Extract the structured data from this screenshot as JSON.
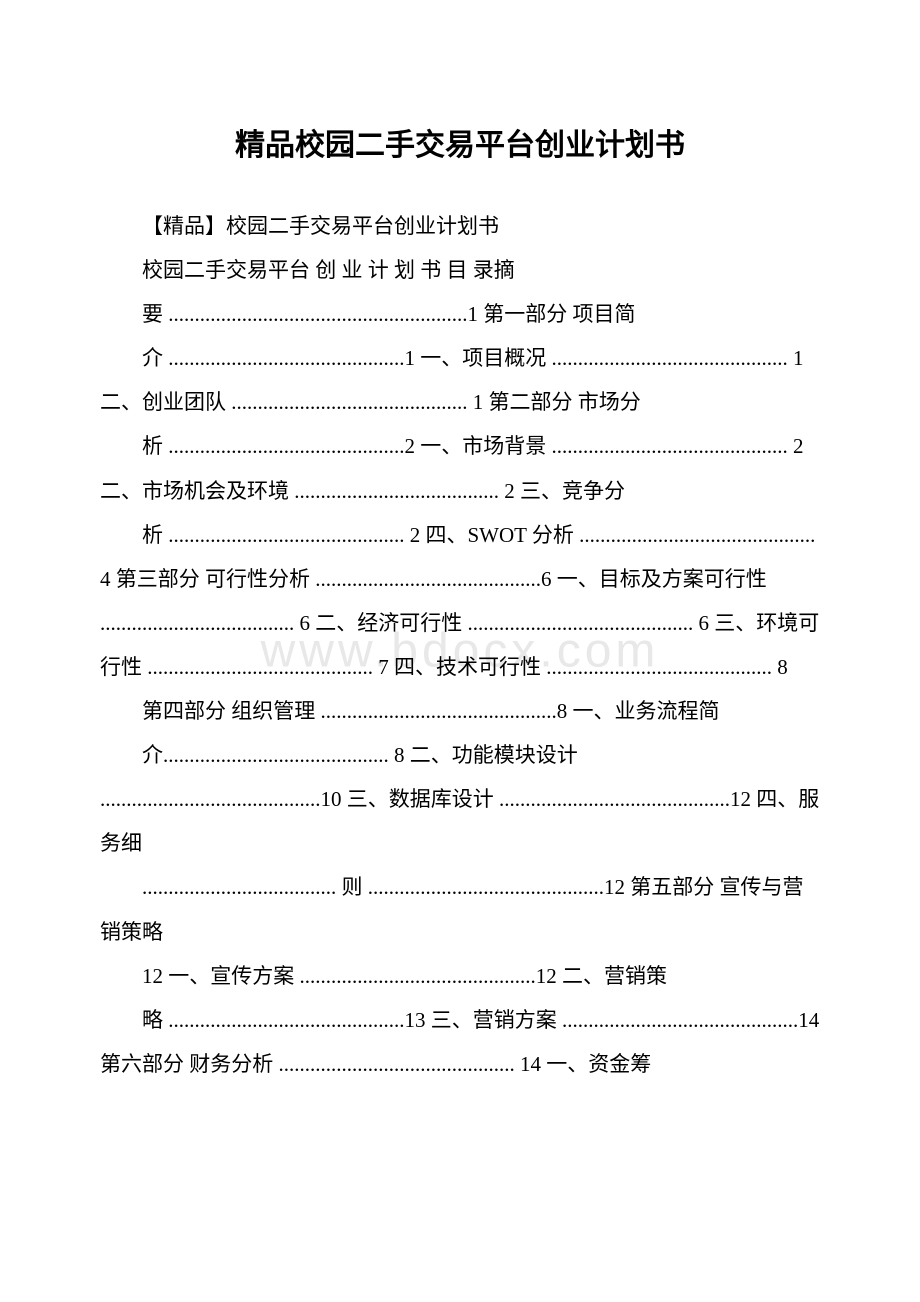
{
  "title": "精品校园二手交易平台创业计划书",
  "watermark": "www.bdocx.com",
  "lines": {
    "l1": "【精品】校园二手交易平台创业计划书",
    "l2": "校园二手交易平台 创 业 计 划 书 目 录摘",
    "l3": "要 .........................................................1 第一部分 项目简",
    "l4": "介 .............................................1 一、项目概况 ............................................. 1 二、创业团队 ............................................. 1 第二部分 市场分",
    "l5": "析 .............................................2 一、市场背景 ............................................. 2 二、市场机会及环境 ....................................... 2 三、竞争分",
    "l6": "析 ............................................. 2 四、SWOT 分析 ............................................. 4 第三部分 可行性分析 ...........................................6 一、目标及方案可行性 ..................................... 6 二、经济可行性 ........................................... 6 三、环境可行性 ........................................... 7 四、技术可行性 ........................................... 8",
    "l7": "第四部分 组织管理 .............................................8 一、业务流程简",
    "l8": "介........................................... 8 二、功能模块设计 ..........................................10 三、数据库设计 ............................................12 四、服务细",
    "l9": "..................................... 则 .............................................12 第五部分 宣传与营销策略",
    "l10": "12 一、宣传方案 .............................................12 二、营销策",
    "l11": "略 .............................................13 三、营销方案 .............................................14 第六部分 财务分析 ............................................. 14 一、资金筹"
  },
  "styles": {
    "title_fontsize": 30,
    "body_fontsize": 21,
    "title_color": "#000000",
    "body_color": "#000000",
    "background_color": "#ffffff",
    "watermark_color": "#e8e8e8",
    "line_height": 2.1
  }
}
